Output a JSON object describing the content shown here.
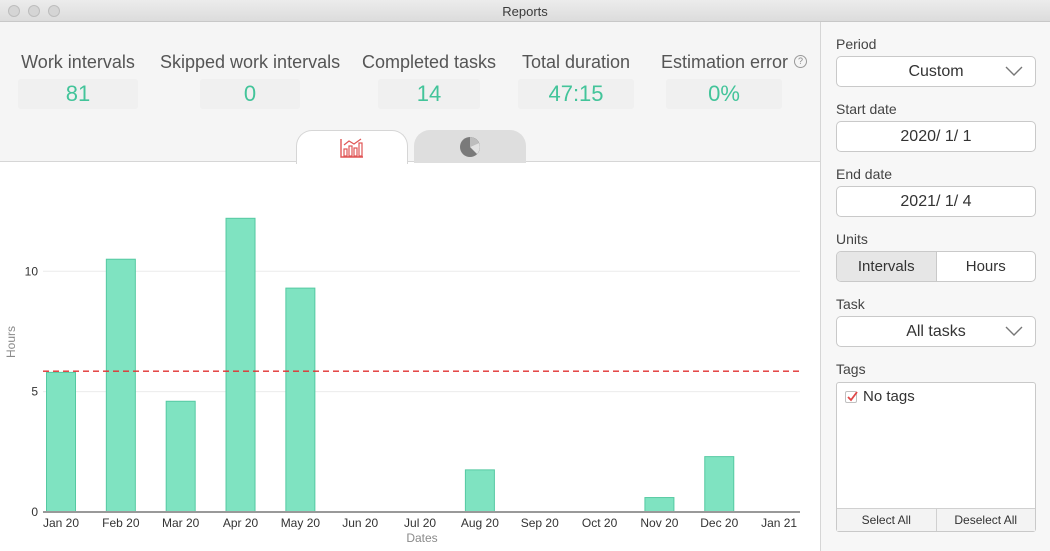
{
  "window": {
    "title": "Reports"
  },
  "stats": [
    {
      "label": "Work intervals",
      "value": "81"
    },
    {
      "label": "Skipped work intervals",
      "value": "0"
    },
    {
      "label": "Completed tasks",
      "value": "14"
    },
    {
      "label": "Total duration",
      "value": "47:15"
    },
    {
      "label": "Estimation error",
      "value": "0%"
    }
  ],
  "help_icon": "?",
  "tabs": [
    {
      "icon": "bar-chart-icon",
      "active": true
    },
    {
      "icon": "pie-chart-icon",
      "active": false
    }
  ],
  "colors": {
    "accent": "#43c49a",
    "bar": "#7fe3c1",
    "bar_stroke": "#55c9a2",
    "average_line": "#e03030",
    "check": "#e04848"
  },
  "chart_data": {
    "type": "bar",
    "categories": [
      "Jan 20",
      "Feb 20",
      "Mar 20",
      "Apr 20",
      "May 20",
      "Jun 20",
      "Jul 20",
      "Aug 20",
      "Sep 20",
      "Oct 20",
      "Nov 20",
      "Dec 20",
      "Jan 21"
    ],
    "values": [
      5.8,
      10.5,
      4.6,
      12.2,
      9.3,
      0,
      0,
      1.75,
      0,
      0,
      0.6,
      2.3,
      0
    ],
    "average": 5.85,
    "xlabel": "Dates",
    "ylabel": "Hours",
    "yticks": [
      0,
      5,
      10
    ],
    "ylim": [
      0,
      13.5
    ],
    "grid": true
  },
  "sidebar": {
    "period_label": "Period",
    "period_value": "Custom",
    "start_label": "Start date",
    "start_value": "2020/ 1/ 1",
    "end_label": "End date",
    "end_value": "2021/ 1/ 4",
    "units_label": "Units",
    "units_options": [
      "Intervals",
      "Hours"
    ],
    "task_label": "Task",
    "task_value": "All tasks",
    "tags_label": "Tags",
    "tags": [
      {
        "label": "No tags",
        "checked": true
      }
    ],
    "select_all": "Select All",
    "deselect_all": "Deselect All"
  }
}
